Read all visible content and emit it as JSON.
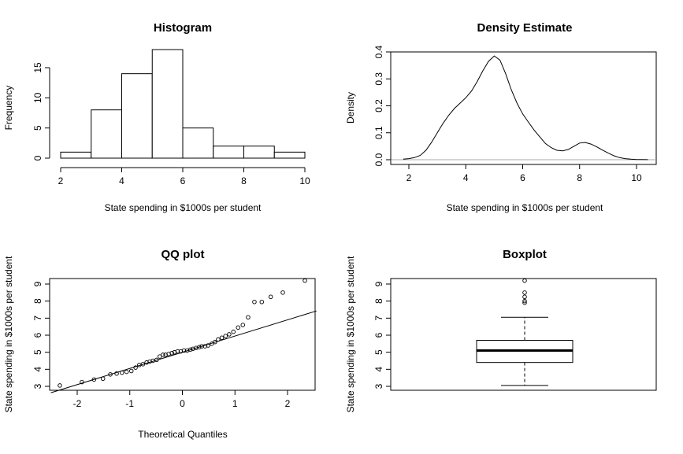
{
  "chart_data": [
    {
      "type": "bar",
      "subtype": "histogram",
      "title": "Histogram",
      "xlabel": "State spending in $1000s per student",
      "ylabel": "Frequency",
      "bins": [
        [
          2,
          3
        ],
        [
          3,
          4
        ],
        [
          4,
          5
        ],
        [
          5,
          6
        ],
        [
          6,
          7
        ],
        [
          7,
          8
        ],
        [
          8,
          9
        ],
        [
          9,
          10
        ]
      ],
      "values": [
        1,
        8,
        14,
        18,
        5,
        2,
        2,
        1
      ],
      "xlim": [
        2,
        10
      ],
      "ylim": [
        0,
        18
      ],
      "xticks": [
        2,
        4,
        6,
        8,
        10
      ],
      "yticks": [
        0,
        5,
        10,
        15
      ]
    },
    {
      "type": "line",
      "subtype": "density",
      "title": "Density Estimate",
      "xlabel": "State spending in $1000s per student",
      "ylabel": "Density",
      "x": [
        1.8,
        2.0,
        2.2,
        2.4,
        2.6,
        2.8,
        3.0,
        3.2,
        3.4,
        3.6,
        3.8,
        4.0,
        4.2,
        4.4,
        4.6,
        4.8,
        5.0,
        5.2,
        5.4,
        5.6,
        5.8,
        6.0,
        6.2,
        6.4,
        6.6,
        6.8,
        7.0,
        7.2,
        7.4,
        7.6,
        7.8,
        8.0,
        8.2,
        8.4,
        8.6,
        8.8,
        9.0,
        9.2,
        9.4,
        9.6,
        9.8,
        10.0,
        10.2,
        10.4
      ],
      "y": [
        0.002,
        0.004,
        0.008,
        0.016,
        0.035,
        0.065,
        0.1,
        0.135,
        0.165,
        0.19,
        0.21,
        0.23,
        0.255,
        0.29,
        0.33,
        0.365,
        0.385,
        0.37,
        0.32,
        0.26,
        0.21,
        0.17,
        0.14,
        0.11,
        0.085,
        0.06,
        0.045,
        0.035,
        0.033,
        0.038,
        0.05,
        0.062,
        0.064,
        0.058,
        0.048,
        0.036,
        0.025,
        0.015,
        0.008,
        0.004,
        0.002,
        0.001,
        0.0005,
        0.0003
      ],
      "xlim": [
        1.5,
        10.7
      ],
      "ylim": [
        -0.005,
        0.41
      ],
      "xticks": [
        2,
        4,
        6,
        8,
        10
      ],
      "yticks": [
        0.0,
        0.1,
        0.2,
        0.3,
        0.4
      ],
      "ytick_labels": [
        "0.0",
        "0.1",
        "0.2",
        "0.3",
        "0.4"
      ]
    },
    {
      "type": "scatter",
      "subtype": "qq",
      "title": "QQ plot",
      "xlabel": "Theoretical Quantiles",
      "ylabel": "State spending in $1000s per student",
      "x": [
        -2.33,
        -1.91,
        -1.68,
        -1.51,
        -1.37,
        -1.25,
        -1.15,
        -1.06,
        -0.97,
        -0.89,
        -0.82,
        -0.75,
        -0.68,
        -0.62,
        -0.56,
        -0.49,
        -0.43,
        -0.37,
        -0.32,
        -0.26,
        -0.2,
        -0.15,
        -0.09,
        -0.03,
        0.03,
        0.09,
        0.15,
        0.2,
        0.26,
        0.32,
        0.37,
        0.43,
        0.49,
        0.56,
        0.62,
        0.68,
        0.75,
        0.82,
        0.89,
        0.97,
        1.06,
        1.15,
        1.25,
        1.37,
        1.51,
        1.68,
        1.91,
        2.33
      ],
      "y": [
        3.05,
        3.25,
        3.4,
        3.45,
        3.7,
        3.75,
        3.8,
        3.85,
        3.9,
        4.1,
        4.25,
        4.3,
        4.4,
        4.45,
        4.5,
        4.55,
        4.75,
        4.85,
        4.85,
        4.9,
        4.95,
        5.0,
        5.05,
        5.05,
        5.1,
        5.1,
        5.15,
        5.2,
        5.25,
        5.3,
        5.35,
        5.35,
        5.4,
        5.5,
        5.6,
        5.75,
        5.85,
        5.95,
        6.05,
        6.2,
        6.45,
        6.6,
        7.05,
        7.95,
        7.95,
        8.25,
        8.5,
        9.2
      ],
      "reference_line": {
        "intercept": 5.0,
        "slope": 0.95
      },
      "xlim": [
        -2.5,
        2.55
      ],
      "ylim": [
        2.8,
        9.35
      ],
      "xticks": [
        -2,
        -1,
        0,
        1,
        2
      ],
      "yticks": [
        3,
        4,
        5,
        6,
        7,
        8,
        9
      ]
    },
    {
      "type": "box",
      "title": "Boxplot",
      "ylabel": "State spending in $1000s per student",
      "whisker_low": 3.05,
      "q1": 4.4,
      "median": 5.1,
      "q3": 5.7,
      "whisker_high": 7.05,
      "outliers": [
        7.9,
        8.0,
        8.25,
        8.5,
        9.2
      ],
      "ylim": [
        2.8,
        9.35
      ],
      "yticks": [
        3,
        4,
        5,
        6,
        7,
        8,
        9
      ]
    }
  ]
}
